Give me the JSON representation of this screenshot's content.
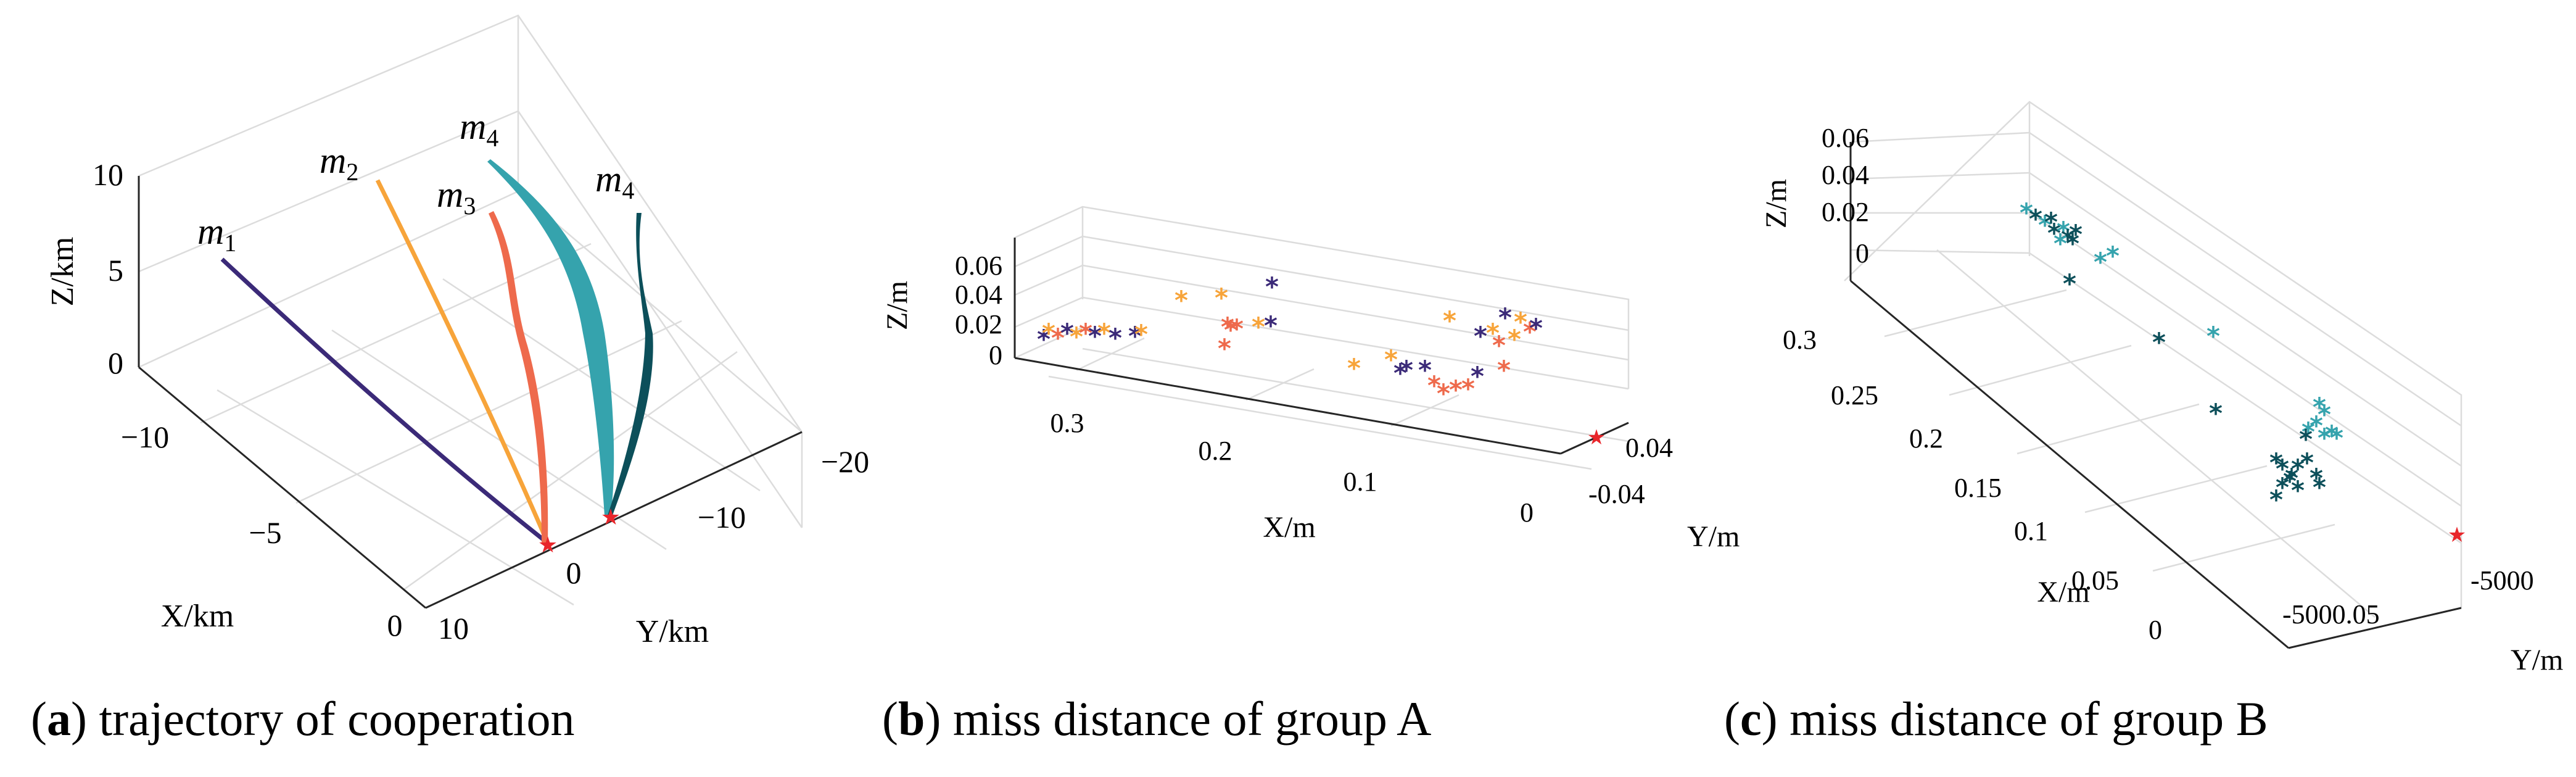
{
  "chart_data": [
    {
      "type": "line3d",
      "panel": "a",
      "caption_letter": "a",
      "caption_text": " trajectory of cooperation",
      "xlabel": "X/km",
      "ylabel": "Y/km",
      "zlabel": "Z/km",
      "x_ticks": [
        "0",
        "−5",
        "−10"
      ],
      "y_ticks": [
        "10",
        "0",
        "−10",
        "−20"
      ],
      "z_ticks": [
        "0",
        "5",
        "10"
      ],
      "target_marker": "★",
      "series": [
        {
          "name": "m1",
          "base": "m",
          "sub": "1",
          "color": "#3b2a78"
        },
        {
          "name": "m2",
          "base": "m",
          "sub": "2",
          "color": "#f7a43a"
        },
        {
          "name": "m3",
          "base": "m",
          "sub": "3",
          "color": "#ee6a4c"
        },
        {
          "name": "m4",
          "base": "m",
          "sub": "4",
          "color": "#35a3ad"
        },
        {
          "name": "m4",
          "base": "m",
          "sub": "4",
          "color": "#0c4f5a"
        }
      ]
    },
    {
      "type": "scatter3d",
      "panel": "b",
      "caption_letter": "b",
      "caption_text": " miss distance of group A",
      "xlabel": "X/m",
      "ylabel": "Y/m",
      "zlabel": "Z/m",
      "x_ticks": [
        "0.3",
        "0.2",
        "0.1",
        "0"
      ],
      "y_ticks": [
        "0.04",
        "-0.04"
      ],
      "z_ticks": [
        "0.06",
        "0.04",
        "0.02",
        "0"
      ],
      "colors": [
        "#3b2a78",
        "#f7a43a",
        "#ee6a4c"
      ],
      "marker": "*",
      "target_marker": "★"
    },
    {
      "type": "scatter3d",
      "panel": "c",
      "caption_letter": "c",
      "caption_text": " miss distance of group B",
      "xlabel": "X/m",
      "ylabel": "Y/m",
      "zlabel": "Z/m",
      "x_ticks": [
        "0.3",
        "0.25",
        "0.2",
        "0.15",
        "0.1",
        "0.05",
        "0"
      ],
      "y_ticks": [
        "-5000",
        "-5000.05"
      ],
      "z_ticks": [
        "0.06",
        "0.04",
        "0.02",
        "0"
      ],
      "colors": [
        "#0c4f5a",
        "#35a3ad"
      ],
      "marker": "*",
      "target_marker": "★"
    }
  ]
}
